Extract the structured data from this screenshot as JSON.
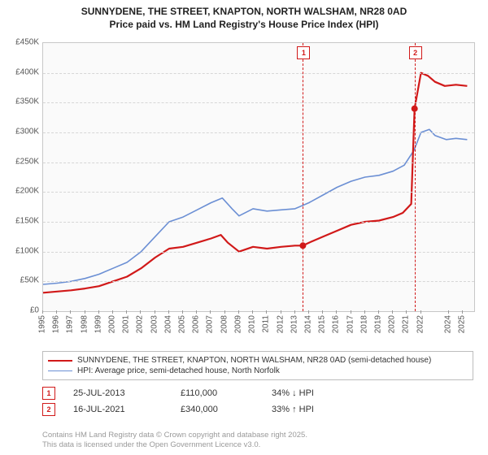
{
  "title_line1": "SUNNYDENE, THE STREET, KNAPTON, NORTH WALSHAM, NR28 0AD",
  "title_line2": "Price paid vs. HM Land Registry's House Price Index (HPI)",
  "chart": {
    "type": "line",
    "background_color": "#fafafa",
    "border_color": "#c7c7c7",
    "grid_color": "#d6d6d6",
    "title_fontsize": 12,
    "tick_fontsize": 10,
    "x": {
      "min": 1995,
      "max": 2025.8,
      "ticks": [
        1995,
        1996,
        1997,
        1998,
        1999,
        2000,
        2001,
        2002,
        2003,
        2004,
        2005,
        2006,
        2007,
        2008,
        2009,
        2010,
        2011,
        2012,
        2013,
        2014,
        2015,
        2016,
        2017,
        2018,
        2019,
        2020,
        2021,
        2022,
        2024,
        2025
      ]
    },
    "y": {
      "min": 0,
      "max": 450000,
      "tick_step": 50000,
      "tick_prefix": "£",
      "tick_suffix": "K",
      "tick_divisor": 1000
    },
    "series": [
      {
        "id": "price_paid",
        "label": "SUNNYDENE, THE STREET, KNAPTON, NORTH WALSHAM, NR28 0AD (semi-detached house)",
        "color": "#d11919",
        "line_width": 2.2,
        "points": [
          [
            1995,
            31000
          ],
          [
            1996,
            33000
          ],
          [
            1997,
            35000
          ],
          [
            1998,
            38000
          ],
          [
            1999,
            42000
          ],
          [
            2000,
            50000
          ],
          [
            2001,
            58000
          ],
          [
            2002,
            72000
          ],
          [
            2003,
            90000
          ],
          [
            2004,
            105000
          ],
          [
            2005,
            108000
          ],
          [
            2006,
            115000
          ],
          [
            2007,
            122000
          ],
          [
            2007.7,
            128000
          ],
          [
            2008.2,
            115000
          ],
          [
            2009,
            100000
          ],
          [
            2010,
            108000
          ],
          [
            2011,
            105000
          ],
          [
            2012,
            108000
          ],
          [
            2013,
            110000
          ],
          [
            2013.56,
            110000
          ],
          [
            2014,
            115000
          ],
          [
            2015,
            125000
          ],
          [
            2016,
            135000
          ],
          [
            2017,
            145000
          ],
          [
            2018,
            150000
          ],
          [
            2019,
            152000
          ],
          [
            2020,
            158000
          ],
          [
            2020.7,
            165000
          ],
          [
            2021.3,
            180000
          ],
          [
            2021.54,
            340000
          ],
          [
            2022,
            400000
          ],
          [
            2022.5,
            395000
          ],
          [
            2023,
            385000
          ],
          [
            2023.7,
            378000
          ],
          [
            2024.5,
            380000
          ],
          [
            2025.3,
            378000
          ]
        ]
      },
      {
        "id": "hpi",
        "label": "HPI: Average price, semi-detached house, North Norfolk",
        "color": "#6b8fd4",
        "line_width": 1.6,
        "points": [
          [
            1995,
            45000
          ],
          [
            1996,
            47000
          ],
          [
            1997,
            50000
          ],
          [
            1998,
            55000
          ],
          [
            1999,
            62000
          ],
          [
            2000,
            72000
          ],
          [
            2001,
            82000
          ],
          [
            2002,
            100000
          ],
          [
            2003,
            125000
          ],
          [
            2004,
            150000
          ],
          [
            2005,
            158000
          ],
          [
            2006,
            170000
          ],
          [
            2007,
            182000
          ],
          [
            2007.8,
            190000
          ],
          [
            2008.5,
            172000
          ],
          [
            2009,
            160000
          ],
          [
            2010,
            172000
          ],
          [
            2011,
            168000
          ],
          [
            2012,
            170000
          ],
          [
            2013,
            172000
          ],
          [
            2014,
            182000
          ],
          [
            2015,
            195000
          ],
          [
            2016,
            208000
          ],
          [
            2017,
            218000
          ],
          [
            2018,
            225000
          ],
          [
            2019,
            228000
          ],
          [
            2020,
            235000
          ],
          [
            2020.8,
            245000
          ],
          [
            2021.5,
            270000
          ],
          [
            2022,
            300000
          ],
          [
            2022.6,
            305000
          ],
          [
            2023,
            295000
          ],
          [
            2023.8,
            288000
          ],
          [
            2024.5,
            290000
          ],
          [
            2025.3,
            288000
          ]
        ]
      }
    ],
    "sale_markers": [
      {
        "idx": "1",
        "x": 2013.56,
        "y": 110000,
        "color": "#d11919"
      },
      {
        "idx": "2",
        "x": 2021.54,
        "y": 340000,
        "color": "#d11919"
      }
    ],
    "sale_point_radius": 4
  },
  "legend": {
    "border_color": "#bdbdbd",
    "items": [
      {
        "color": "#d11919",
        "width": 2.5,
        "label_ref": "chart.series.0.label"
      },
      {
        "color": "#6b8fd4",
        "width": 1.8,
        "label_ref": "chart.series.1.label"
      }
    ]
  },
  "sales_table": [
    {
      "idx": "1",
      "color": "#d11919",
      "date": "25-JUL-2013",
      "price": "£110,000",
      "pct": "34% ↓ HPI"
    },
    {
      "idx": "2",
      "color": "#d11919",
      "date": "16-JUL-2021",
      "price": "£340,000",
      "pct": "33% ↑ HPI"
    }
  ],
  "footer_line1": "Contains HM Land Registry data © Crown copyright and database right 2025.",
  "footer_line2": "This data is licensed under the Open Government Licence v3.0."
}
